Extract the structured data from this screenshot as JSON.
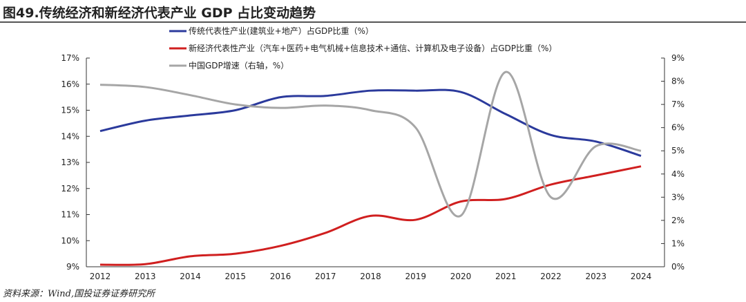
{
  "title": "图49.传统经济和新经济代表产业 GDP 占比变动趋势",
  "source": "资料来源：Wind,国投证券证券研究所",
  "chart_data": {
    "type": "line",
    "x": [
      "2012",
      "2013",
      "2014",
      "2015",
      "2016",
      "2017",
      "2018",
      "2019",
      "2020",
      "2021",
      "2022",
      "2023",
      "2024"
    ],
    "y_left": {
      "ticks": [
        "9%",
        "10%",
        "11%",
        "12%",
        "13%",
        "14%",
        "15%",
        "16%",
        "17%"
      ],
      "range": [
        9,
        17
      ]
    },
    "y_right": {
      "ticks": [
        "0%",
        "1%",
        "2%",
        "3%",
        "4%",
        "5%",
        "6%",
        "7%",
        "8%",
        "9%"
      ],
      "range": [
        0,
        9
      ]
    },
    "legend_position": "top",
    "grid": false,
    "series": [
      {
        "name": "传统代表性产业(建筑业+地产）占GDP比重（%）",
        "color": "#2b3a9c",
        "axis": "left",
        "values": [
          14.2,
          14.6,
          14.8,
          15.0,
          15.5,
          15.55,
          15.75,
          15.75,
          15.7,
          14.85,
          14.05,
          13.8,
          13.25
        ]
      },
      {
        "name": "新经济代表性产业（汽车+医药+电气机械+信息技术+通信、计算机及电子设备）占GDP比重（%）",
        "color": "#d01f1f",
        "axis": "right_none",
        "values": [
          9.08,
          9.1,
          9.4,
          9.5,
          9.8,
          10.3,
          10.95,
          10.8,
          11.5,
          11.6,
          12.15,
          12.5,
          12.85
        ]
      },
      {
        "name": "中国GDP增速（右轴，%）",
        "color": "#a6a6a6",
        "axis": "right",
        "values": [
          7.85,
          7.75,
          7.4,
          7.0,
          6.85,
          6.95,
          6.75,
          6.0,
          2.2,
          8.4,
          3.0,
          5.2,
          5.0
        ]
      }
    ]
  }
}
